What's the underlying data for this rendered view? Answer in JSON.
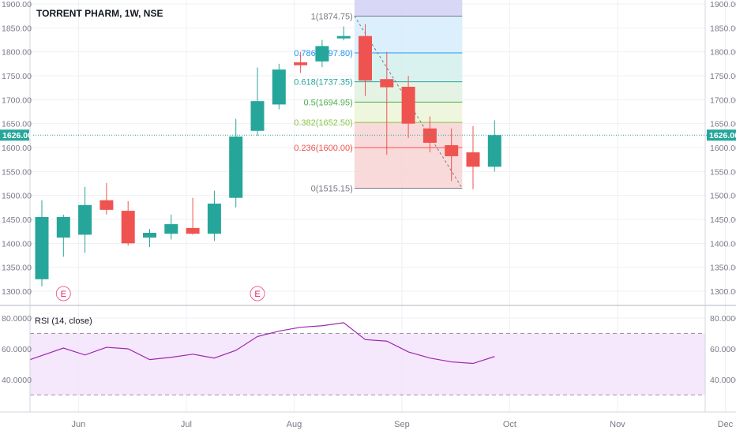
{
  "header": {
    "symbol_label": "TORRENT PHARM, 1W, NSE"
  },
  "chart_data": {
    "type": "candlestick",
    "price_axis": {
      "ylim": [
        1270,
        1900
      ],
      "ticks": [
        "1900.00",
        "1850.00",
        "1800.00",
        "1750.00",
        "1700.00",
        "1650.00",
        "1600.00",
        "1550.00",
        "1500.00",
        "1450.00",
        "1400.00",
        "1350.00",
        "1300.00"
      ],
      "tick_values": [
        1900,
        1850,
        1800,
        1750,
        1700,
        1650,
        1600,
        1550,
        1500,
        1450,
        1400,
        1350,
        1300
      ],
      "current_price": 1626,
      "current_price_label": "1626.00"
    },
    "x_axis": {
      "labels": [
        "Jun",
        "Jul",
        "Aug",
        "Sep",
        "Oct",
        "Nov",
        "Dec"
      ],
      "label_weeks": [
        1.7,
        6.7,
        11.7,
        16.7,
        21.7,
        26.7,
        31.7
      ]
    },
    "candles": [
      {
        "o": 1325,
        "h": 1490,
        "l": 1310,
        "c": 1455
      },
      {
        "o": 1412,
        "h": 1460,
        "l": 1372,
        "c": 1455
      },
      {
        "o": 1418,
        "h": 1518,
        "l": 1380,
        "c": 1480
      },
      {
        "o": 1490,
        "h": 1526,
        "l": 1460,
        "c": 1470
      },
      {
        "o": 1468,
        "h": 1488,
        "l": 1395,
        "c": 1400
      },
      {
        "o": 1412,
        "h": 1430,
        "l": 1392,
        "c": 1422
      },
      {
        "o": 1420,
        "h": 1460,
        "l": 1408,
        "c": 1440
      },
      {
        "o": 1432,
        "h": 1495,
        "l": 1418,
        "c": 1420
      },
      {
        "o": 1420,
        "h": 1510,
        "l": 1405,
        "c": 1483
      },
      {
        "o": 1495,
        "h": 1660,
        "l": 1475,
        "c": 1623
      },
      {
        "o": 1635,
        "h": 1767,
        "l": 1625,
        "c": 1697
      },
      {
        "o": 1690,
        "h": 1775,
        "l": 1680,
        "c": 1763
      },
      {
        "o": 1778,
        "h": 1800,
        "l": 1756,
        "c": 1772
      },
      {
        "o": 1780,
        "h": 1825,
        "l": 1768,
        "c": 1812
      },
      {
        "o": 1828,
        "h": 1853,
        "l": 1824,
        "c": 1833
      },
      {
        "o": 1833,
        "h": 1858,
        "l": 1708,
        "c": 1740
      },
      {
        "o": 1743,
        "h": 1800,
        "l": 1585,
        "c": 1726
      },
      {
        "o": 1727,
        "h": 1750,
        "l": 1620,
        "c": 1650
      },
      {
        "o": 1640,
        "h": 1665,
        "l": 1590,
        "c": 1610
      },
      {
        "o": 1605,
        "h": 1640,
        "l": 1530,
        "c": 1582
      },
      {
        "o": 1590,
        "h": 1645,
        "l": 1513,
        "c": 1560
      },
      {
        "o": 1560,
        "h": 1657,
        "l": 1550,
        "c": 1626
      }
    ],
    "earnings_markers": [
      {
        "week": 1,
        "label": "E"
      },
      {
        "week": 10,
        "label": "E"
      }
    ],
    "fibonacci": {
      "start_week": 14.5,
      "end_week": 19.5,
      "high": 1874.75,
      "low": 1515.15,
      "levels": [
        {
          "ratio": 1,
          "price": 1874.75,
          "label": "1(1874.75)",
          "color": "#787b86",
          "fill": "#dcdcdc"
        },
        {
          "ratio": 0.786,
          "price": 1797.8,
          "label": "0.786(1797.80)",
          "color": "#2196f3",
          "fill": "#d6ecfb"
        },
        {
          "ratio": 0.618,
          "price": 1737.35,
          "label": "0.618(1737.35)",
          "color": "#26a69a",
          "fill": "#d4f0ec"
        },
        {
          "ratio": 0.5,
          "price": 1694.95,
          "label": "0.5(1694.95)",
          "color": "#4caf50",
          "fill": "#dff1df"
        },
        {
          "ratio": 0.382,
          "price": 1652.5,
          "label": "0.382(1652.50)",
          "color": "#8bc34a",
          "fill": "#ecf5d8"
        },
        {
          "ratio": 0.236,
          "price": 1600.0,
          "label": "0.236(1600.00)",
          "color": "#ef5350",
          "fill": "#f7d3d3"
        },
        {
          "ratio": 0,
          "price": 1515.15,
          "label": "0(1515.15)",
          "color": "#787b86",
          "fill": null
        }
      ],
      "top_fill": "#d5d3f5"
    },
    "rsi": {
      "label": "RSI (14, close)",
      "ylim": [
        24,
        84
      ],
      "ticks": [
        "80.0000",
        "60.0000",
        "40.0000"
      ],
      "tick_values": [
        80,
        60,
        40
      ],
      "upper_band": 70,
      "lower_band": 30,
      "values": [
        53,
        60.5,
        56,
        61,
        60,
        53,
        54.5,
        56.5,
        54,
        59,
        68,
        71.5,
        74,
        75,
        77,
        66,
        65,
        58,
        54,
        51.5,
        50.5,
        55
      ],
      "line_color": "#9c27b0",
      "band_fill": "#f3e2fb"
    },
    "colors": {
      "up": "#26a69a",
      "down": "#ef5350",
      "grid": "#eef0f3",
      "price_line": "#26a69a",
      "axis_text": "#787b86",
      "label_text": "#131722"
    }
  }
}
